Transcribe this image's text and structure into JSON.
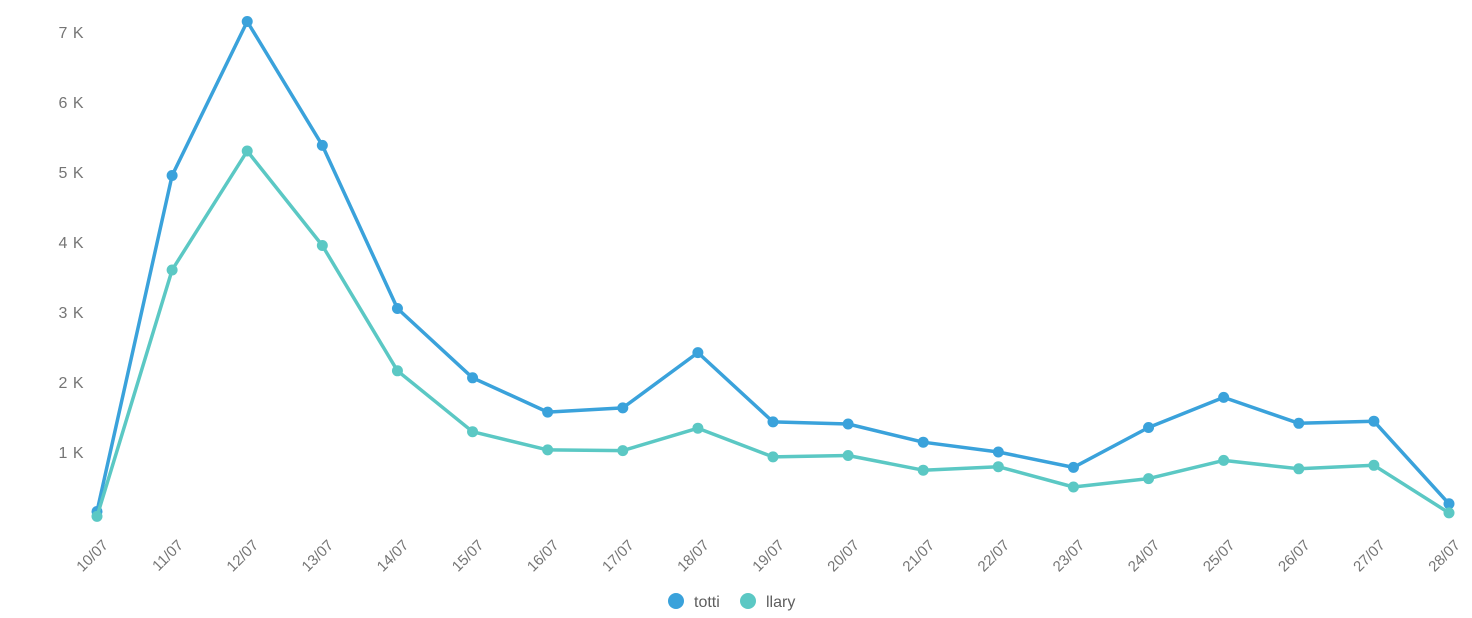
{
  "chart_data": {
    "type": "line",
    "title": "",
    "xlabel": "",
    "ylabel": "",
    "x": [
      "10/07",
      "11/07",
      "12/07",
      "13/07",
      "14/07",
      "15/07",
      "16/07",
      "17/07",
      "18/07",
      "19/07",
      "20/07",
      "21/07",
      "22/07",
      "23/07",
      "24/07",
      "25/07",
      "26/07",
      "27/07",
      "28/07"
    ],
    "series": [
      {
        "name": "totti",
        "color": "#3AA2DB",
        "values": [
          150,
          4950,
          7150,
          5380,
          3050,
          2060,
          1570,
          1630,
          2420,
          1430,
          1400,
          1140,
          1000,
          780,
          1350,
          1780,
          1410,
          1440,
          260
        ]
      },
      {
        "name": "llary",
        "color": "#5BC8C4",
        "values": [
          80,
          3600,
          5300,
          3950,
          2160,
          1290,
          1030,
          1020,
          1340,
          930,
          950,
          740,
          790,
          500,
          620,
          880,
          760,
          810,
          130
        ]
      }
    ],
    "y_ticks": [
      {
        "label": "1 K",
        "value": 1000
      },
      {
        "label": "2 K",
        "value": 2000
      },
      {
        "label": "3 K",
        "value": 3000
      },
      {
        "label": "4 K",
        "value": 4000
      },
      {
        "label": "5 K",
        "value": 5000
      },
      {
        "label": "6 K",
        "value": 6000
      },
      {
        "label": "7 K",
        "value": 7000
      }
    ],
    "ylim": [
      0,
      7500
    ],
    "grid": false,
    "legend_position": "bottom-center",
    "colors": {
      "axis_label": "#757575",
      "legend_text": "#5E5E5E",
      "background": "#FFFFFF"
    }
  }
}
